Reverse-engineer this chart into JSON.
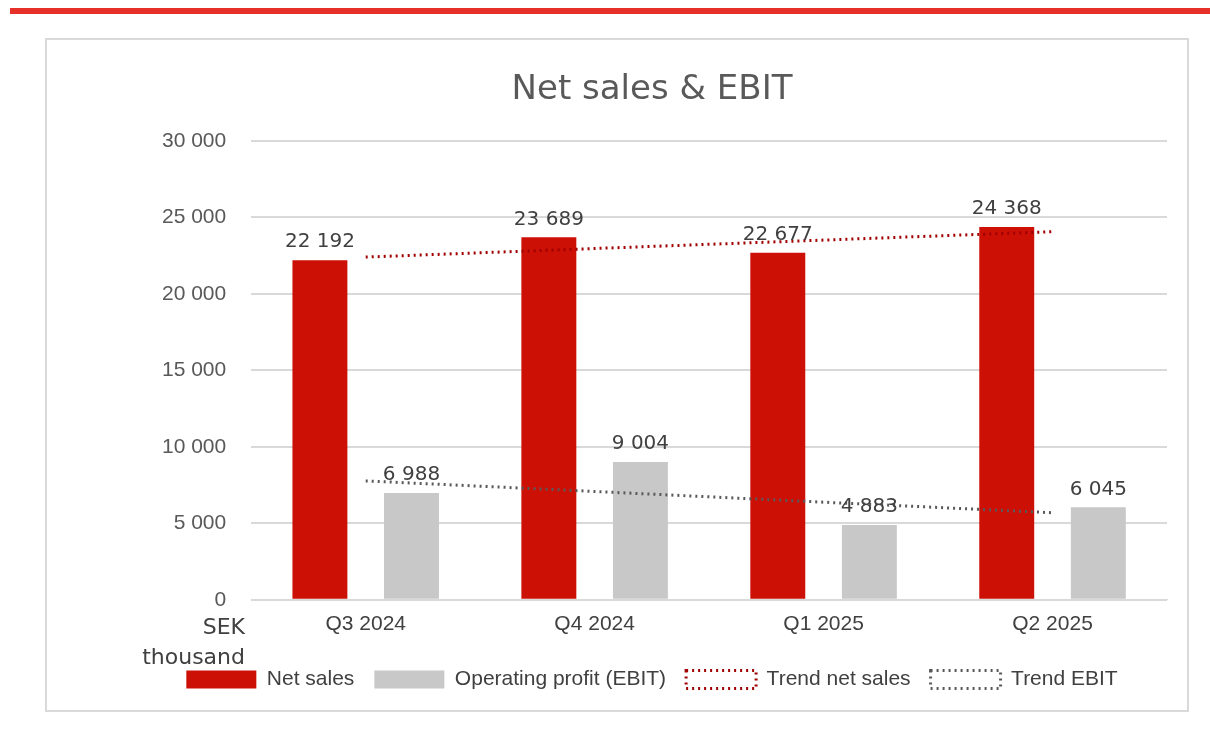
{
  "chart_data": {
    "type": "bar",
    "title": "Net sales & EBIT",
    "ylabel": "SEK thousand",
    "categories": [
      "Q3 2024",
      "Q4 2024",
      "Q1 2025",
      "Q2 2025"
    ],
    "series": [
      {
        "name": "Net sales",
        "color": "#cc1006",
        "values": [
          22192,
          23689,
          22677,
          24368
        ],
        "value_labels": [
          "22 192",
          "23 689",
          "22 677",
          "24 368"
        ]
      },
      {
        "name": "Operating profit (EBIT)",
        "color": "#c8c8c8",
        "values": [
          6988,
          9004,
          4883,
          6045
        ],
        "value_labels": [
          "6 988",
          "9 004",
          "4 883",
          "6 045"
        ]
      },
      {
        "name": "Trend net sales",
        "type": "line",
        "color": "#a00000",
        "line_style": "dotted",
        "marker": "none",
        "values": [
          22400,
          22960,
          23510,
          24060
        ]
      },
      {
        "name": "Trend EBIT",
        "type": "line",
        "color": "#595959",
        "line_style": "dotted",
        "marker": "none",
        "values": [
          7770,
          7080,
          6380,
          5690
        ]
      }
    ],
    "ylim": [
      0,
      30000
    ],
    "yticks": [
      {
        "value": 0,
        "label": "0"
      },
      {
        "value": 5000,
        "label": "5 000"
      },
      {
        "value": 10000,
        "label": "10 000"
      },
      {
        "value": 15000,
        "label": "15 000"
      },
      {
        "value": 20000,
        "label": "20 000"
      },
      {
        "value": 25000,
        "label": "25 000"
      },
      {
        "value": 30000,
        "label": "30 000"
      }
    ],
    "grid": "y",
    "legend": "bottom"
  }
}
